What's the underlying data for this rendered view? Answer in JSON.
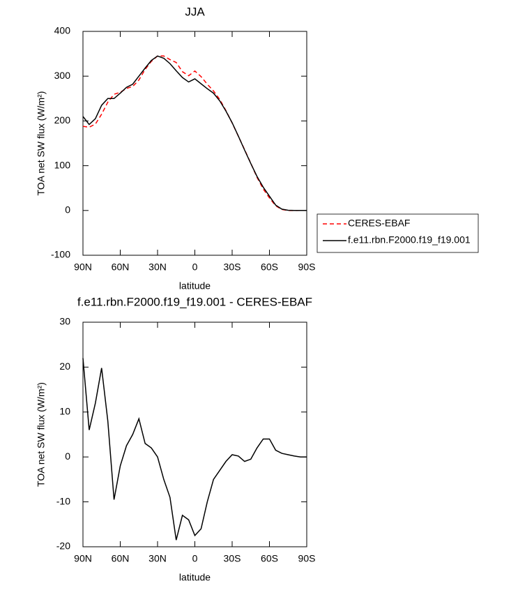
{
  "chart_data": [
    {
      "type": "line",
      "title": "JJA",
      "xlabel": "latitude",
      "ylabel": "TOA net SW flux (W/m²)",
      "x": [
        90,
        85,
        80,
        75,
        70,
        65,
        60,
        55,
        50,
        45,
        40,
        35,
        30,
        25,
        20,
        15,
        10,
        5,
        0,
        -5,
        -10,
        -15,
        -20,
        -25,
        -30,
        -35,
        -40,
        -45,
        -50,
        -55,
        -60,
        -65,
        -70,
        -75,
        -80,
        -85,
        -90
      ],
      "series": [
        {
          "name": "CERES-EBAF",
          "color": "#ff0000",
          "dash": true,
          "values": [
            188,
            186,
            193,
            215,
            242,
            259.5,
            264,
            272.5,
            277,
            291.5,
            315,
            333,
            345,
            345,
            337,
            330.5,
            310,
            301,
            311.5,
            299,
            282,
            267,
            248,
            223,
            195.5,
            165.8,
            136,
            105.5,
            74,
            48,
            28,
            10.5,
            2.2,
            0,
            -0.2,
            0,
            0
          ]
        },
        {
          "name": "f.e11.rbn.F2000.f19_f19.001",
          "color": "#000000",
          "dash": false,
          "values": [
            210,
            192,
            205,
            235,
            250,
            250,
            262,
            275,
            282,
            300,
            318,
            335,
            345,
            340,
            328,
            312,
            297,
            287,
            294,
            283,
            272,
            262,
            245,
            222,
            196,
            166,
            135,
            105,
            76,
            52,
            32,
            12,
            3,
            0.5,
            0,
            0,
            0
          ]
        }
      ],
      "xlim": [
        90,
        -90
      ],
      "xticks": [
        {
          "value": 90,
          "label": "90N"
        },
        {
          "value": 60,
          "label": "60N"
        },
        {
          "value": 30,
          "label": "30N"
        },
        0,
        {
          "value": -30,
          "label": "30S"
        },
        {
          "value": -60,
          "label": "60S"
        },
        {
          "value": -90,
          "label": "90S"
        }
      ],
      "ylim": [
        -100,
        400
      ],
      "yticks": [
        -100,
        0,
        100,
        200,
        300,
        400
      ],
      "legend": "outside-right"
    },
    {
      "type": "line",
      "title": "f.e11.rbn.F2000.f19_f19.001 - CERES-EBAF",
      "xlabel": "latitude",
      "ylabel": "TOA net SW flux (W/m²)",
      "x": [
        90,
        85,
        80,
        75,
        70,
        65,
        60,
        55,
        50,
        45,
        40,
        35,
        30,
        25,
        20,
        15,
        10,
        5,
        0,
        -5,
        -10,
        -15,
        -20,
        -25,
        -30,
        -35,
        -40,
        -45,
        -50,
        -55,
        -60,
        -65,
        -70,
        -75,
        -80,
        -85,
        -90
      ],
      "values": [
        22,
        6,
        12,
        19.8,
        8,
        -9.5,
        -2,
        2.5,
        5,
        8.5,
        3,
        2,
        0,
        -5,
        -9,
        -18.5,
        -13,
        -14,
        -17.5,
        -16,
        -10,
        -5,
        -3,
        -1,
        0.5,
        0.2,
        -1,
        -0.5,
        2,
        4,
        4,
        1.5,
        0.8,
        0.5,
        0.2,
        0,
        0
      ],
      "color": "#000000",
      "xlim": [
        90,
        -90
      ],
      "xticks": [
        {
          "value": 90,
          "label": "90N"
        },
        {
          "value": 60,
          "label": "60N"
        },
        {
          "value": 30,
          "label": "30N"
        },
        0,
        {
          "value": -30,
          "label": "30S"
        },
        {
          "value": -60,
          "label": "60S"
        },
        {
          "value": -90,
          "label": "90S"
        }
      ],
      "ylim": [
        -20,
        30
      ],
      "yticks": [
        -20,
        -10,
        0,
        10,
        20,
        30
      ]
    }
  ]
}
